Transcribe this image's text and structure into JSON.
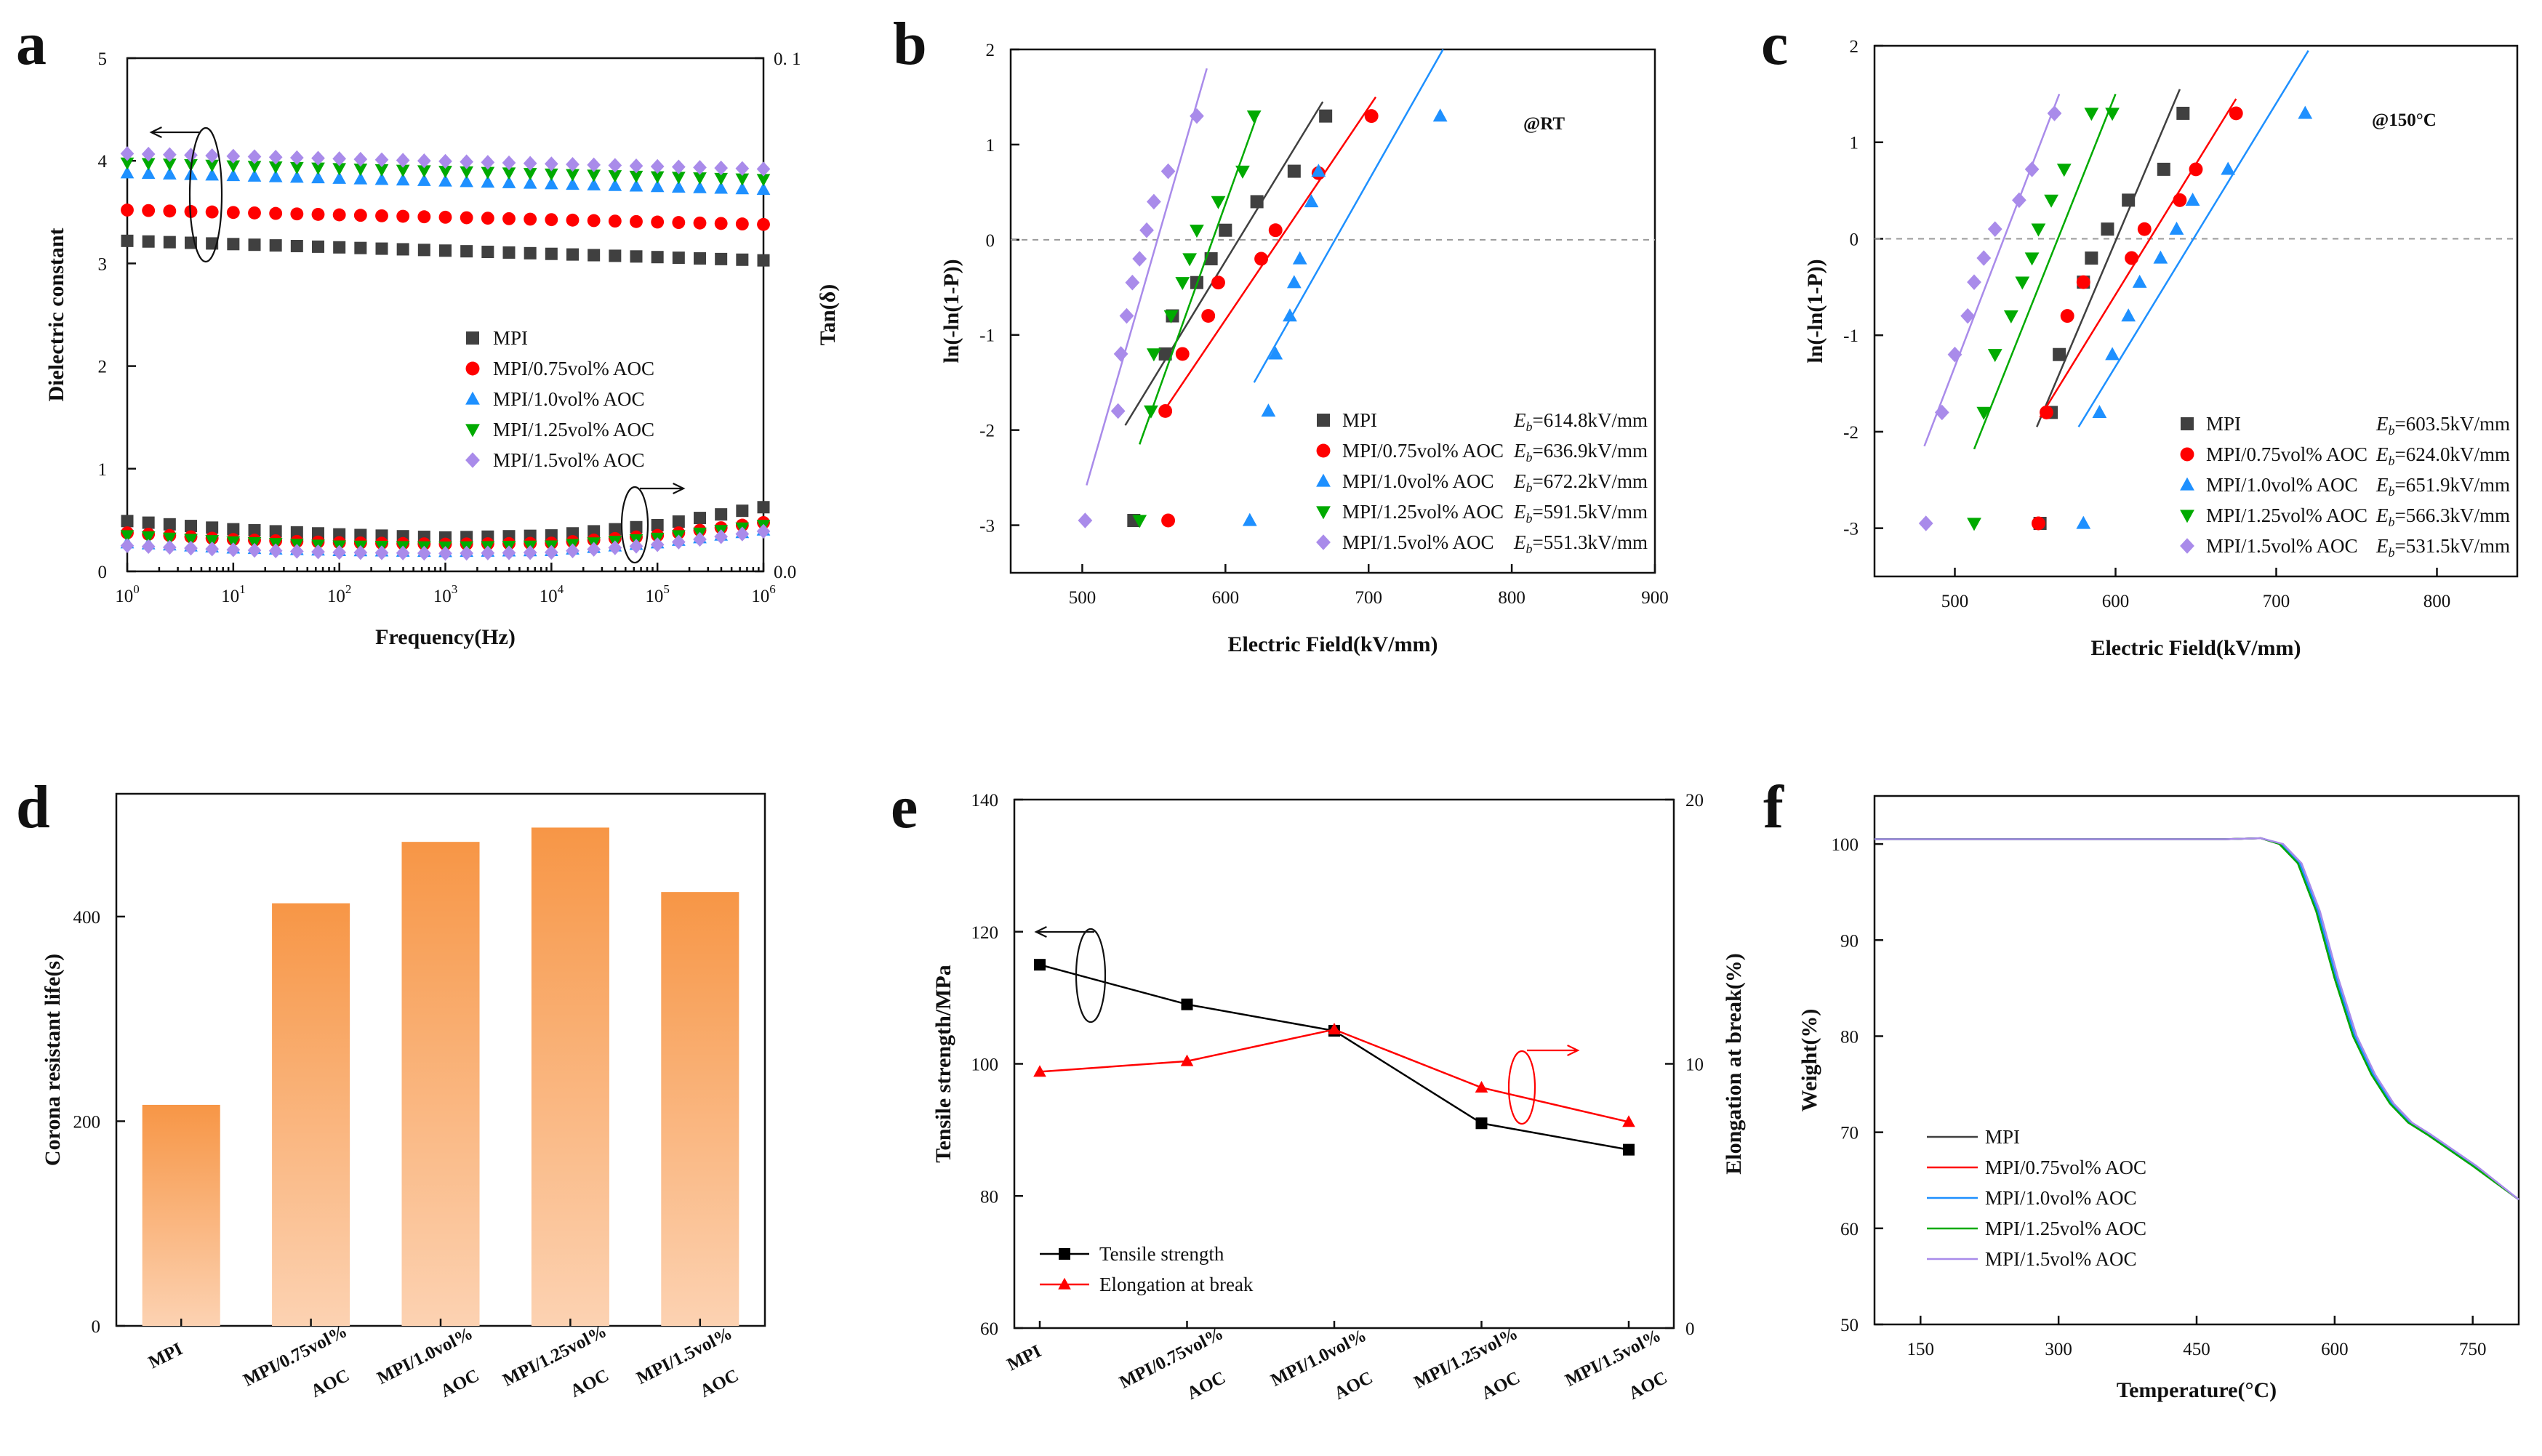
{
  "chart_data": [
    {
      "panel": "a",
      "type": "scatter",
      "xlabel": "Frequency(Hz)",
      "ylabel": "Dielectric constant",
      "y2label": "Tan(δ)",
      "xscale": "log",
      "xlim": [
        1,
        1000000
      ],
      "ylim": [
        0,
        5
      ],
      "y2lim": [
        0.0,
        0.1
      ],
      "xticks": [
        "10^0",
        "10^1",
        "10^2",
        "10^3",
        "10^4",
        "10^5",
        "10^6"
      ],
      "yticks": [
        "0",
        "1",
        "2",
        "3",
        "4",
        "5"
      ],
      "y2ticks": [
        "0.0",
        "0. 1"
      ],
      "legend_position": "center-right",
      "series": [
        {
          "name": "MPI",
          "color": "#404040",
          "marker": "square",
          "eps_start": 3.22,
          "eps_end": 3.03,
          "tan": [
            0.0098,
            0.0082,
            0.0072,
            0.0066,
            0.007,
            0.009,
            0.0125,
            0.0162
          ]
        },
        {
          "name": "MPI/0.75vol% AOC",
          "color": "#ff0000",
          "marker": "circle",
          "eps_start": 3.52,
          "eps_end": 3.38,
          "tan": [
            0.0075,
            0.0062,
            0.0056,
            0.0053,
            0.0055,
            0.007,
            0.0095,
            0.0115
          ]
        },
        {
          "name": "MPI/1.0vol% AOC",
          "color": "#1e90ff",
          "marker": "triangle-up",
          "eps_start": 3.88,
          "eps_end": 3.72,
          "tan": [
            0.0055,
            0.0045,
            0.004,
            0.0038,
            0.004,
            0.0055,
            0.008,
            0.0108
          ]
        },
        {
          "name": "MPI/1.25vol% AOC",
          "color": "#00aa00",
          "marker": "triangle-down",
          "eps_start": 3.98,
          "eps_end": 3.82,
          "tan": [
            0.007,
            0.0058,
            0.005,
            0.0048,
            0.005,
            0.0065,
            0.009,
            0.0112
          ]
        },
        {
          "name": "MPI/1.5vol% AOC",
          "color": "#a98bea",
          "marker": "diamond",
          "eps_start": 4.07,
          "eps_end": 3.92,
          "tan": [
            0.005,
            0.0042,
            0.0037,
            0.0035,
            0.0037,
            0.0052,
            0.0078,
            0.01
          ]
        }
      ]
    },
    {
      "panel": "b",
      "type": "scatter",
      "xlabel": "Electric Field(kV/mm)",
      "ylabel": "ln(-ln(1-P))",
      "annotation": "@RT",
      "xlim": [
        450,
        900
      ],
      "ylim": [
        -3.5,
        2
      ],
      "xticks": [
        "500",
        "600",
        "700",
        "800",
        "900"
      ],
      "yticks": [
        "2",
        "1",
        "0",
        "-1",
        "-2",
        "-3"
      ],
      "legend_position": "lower-right",
      "series": [
        {
          "name": "MPI",
          "eb": "E_b=614.8kV/mm",
          "color": "#404040",
          "marker": "square",
          "x": [
            536,
            558,
            563,
            580,
            590,
            600,
            622,
            648,
            670
          ],
          "y": [
            -2.95,
            -1.2,
            -0.8,
            -0.45,
            -0.2,
            0.1,
            0.4,
            0.72,
            1.3
          ],
          "fit": [
            [
              530,
              -1.95
            ],
            [
              668,
              1.45
            ]
          ]
        },
        {
          "name": "MPI/0.75vol% AOC",
          "eb": "E_b=636.9kV/mm",
          "color": "#ff0000",
          "marker": "circle",
          "x": [
            560,
            558,
            570,
            588,
            595,
            625,
            635,
            665,
            702
          ],
          "y": [
            -2.95,
            -1.8,
            -1.2,
            -0.8,
            -0.45,
            -0.2,
            0.1,
            0.7,
            1.3
          ],
          "fit": [
            [
              557,
              -1.8
            ],
            [
              705,
              1.5
            ]
          ]
        },
        {
          "name": "MPI/1.0vol% AOC",
          "eb": "E_b=672.2kV/mm",
          "color": "#1e90ff",
          "marker": "triangle-up",
          "x": [
            617,
            630,
            635,
            645,
            648,
            652,
            660,
            665,
            750
          ],
          "y": [
            -2.95,
            -1.8,
            -1.2,
            -0.8,
            -0.45,
            -0.2,
            0.4,
            0.72,
            1.3
          ],
          "fit": [
            [
              620,
              -1.5
            ],
            [
              752,
              2.0
            ]
          ]
        },
        {
          "name": "MPI/1.25vol% AOC",
          "eb": "E_b=591.5kV/mm",
          "color": "#00aa00",
          "marker": "triangle-down",
          "x": [
            540,
            548,
            550,
            562,
            570,
            575,
            580,
            595,
            612,
            620
          ],
          "y": [
            -2.95,
            -1.8,
            -1.2,
            -0.8,
            -0.45,
            -0.2,
            0.1,
            0.4,
            0.72,
            1.3
          ],
          "fit": [
            [
              540,
              -2.15
            ],
            [
              622,
              1.3
            ]
          ]
        },
        {
          "name": "MPI/1.5vol% AOC",
          "eb": "E_b=551.3kV/mm",
          "color": "#a98bea",
          "marker": "diamond",
          "x": [
            502,
            525,
            527,
            531,
            535,
            540,
            545,
            550,
            560,
            580
          ],
          "y": [
            -2.95,
            -1.8,
            -1.2,
            -0.8,
            -0.45,
            -0.2,
            0.1,
            0.4,
            0.72,
            1.3
          ],
          "fit": [
            [
              503,
              -2.58
            ],
            [
              587,
              1.8
            ]
          ]
        }
      ]
    },
    {
      "panel": "c",
      "type": "scatter",
      "xlabel": "Electric Field(kV/mm)",
      "ylabel": "ln(-ln(1-P))",
      "annotation": "@150°C",
      "xlim": [
        450,
        850
      ],
      "ylim": [
        -3.5,
        2
      ],
      "xticks": [
        "500",
        "600",
        "700",
        "800"
      ],
      "yticks": [
        "2",
        "1",
        "0",
        "-1",
        "-2",
        "-3"
      ],
      "legend_position": "lower-right",
      "series": [
        {
          "name": "MPI",
          "eb": "E_b=603.5kV/mm",
          "color": "#404040",
          "marker": "square",
          "x": [
            553,
            560,
            565,
            580,
            585,
            595,
            608,
            630,
            642
          ],
          "y": [
            -2.95,
            -1.8,
            -1.2,
            -0.45,
            -0.2,
            0.1,
            0.4,
            0.72,
            1.3
          ],
          "fit": [
            [
              551,
              -1.95
            ],
            [
              640,
              1.55
            ]
          ]
        },
        {
          "name": "MPI/0.75vol% AOC",
          "eb": "E_b=624.0kV/mm",
          "color": "#ff0000",
          "marker": "circle",
          "x": [
            552,
            557,
            570,
            580,
            610,
            618,
            640,
            650,
            675
          ],
          "y": [
            -2.95,
            -1.8,
            -0.8,
            -0.45,
            -0.2,
            0.1,
            0.4,
            0.72,
            1.3
          ],
          "fit": [
            [
              553,
              -1.85
            ],
            [
              675,
              1.45
            ]
          ]
        },
        {
          "name": "MPI/1.0vol% AOC",
          "eb": "E_b=651.9kV/mm",
          "color": "#1e90ff",
          "marker": "triangle-up",
          "x": [
            580,
            590,
            598,
            608,
            615,
            628,
            638,
            648,
            670,
            718
          ],
          "y": [
            -2.95,
            -1.8,
            -1.2,
            -0.8,
            -0.45,
            -0.2,
            0.1,
            0.4,
            0.72,
            1.3
          ],
          "fit": [
            [
              577,
              -1.95
            ],
            [
              720,
              1.95
            ]
          ]
        },
        {
          "name": "MPI/1.25vol% AOC",
          "eb": "E_b=566.3kV/mm",
          "color": "#00aa00",
          "marker": "triangle-down",
          "x": [
            512,
            518,
            525,
            535,
            542,
            548,
            552,
            560,
            568,
            585,
            598
          ],
          "y": [
            -2.95,
            -1.8,
            -1.2,
            -0.8,
            -0.45,
            -0.2,
            0.1,
            0.4,
            0.72,
            1.3,
            1.3
          ],
          "fit": [
            [
              512,
              -2.18
            ],
            [
              600,
              1.5
            ]
          ]
        },
        {
          "name": "MPI/1.5vol% AOC",
          "eb": "E_b=531.5kV/mm",
          "color": "#a98bea",
          "marker": "diamond",
          "x": [
            482,
            492,
            500,
            508,
            512,
            518,
            525,
            540,
            548,
            562
          ],
          "y": [
            -2.95,
            -1.8,
            -1.2,
            -0.8,
            -0.45,
            -0.2,
            0.1,
            0.4,
            0.72,
            1.3
          ],
          "fit": [
            [
              481,
              -2.15
            ],
            [
              565,
              1.5
            ]
          ]
        }
      ]
    },
    {
      "panel": "d",
      "type": "bar",
      "ylabel": "Corona resistant life(s)",
      "ylim": [
        0,
        520
      ],
      "yticks": [
        "0",
        "200",
        "400"
      ],
      "categories": [
        [
          "MPI"
        ],
        [
          "MPI/0.75vol%",
          "AOC"
        ],
        [
          "MPI/1.0vol%",
          "AOC"
        ],
        [
          "MPI/1.25vol%",
          "AOC"
        ],
        [
          "MPI/1.5vol%",
          "AOC"
        ]
      ],
      "values": [
        216,
        413,
        473,
        487,
        424
      ],
      "color": "#f79646"
    },
    {
      "panel": "e",
      "type": "line",
      "ylabel": "Tensile strength/MPa",
      "y2label": "Elongation at break(%)",
      "ylim": [
        60,
        140
      ],
      "y2lim": [
        0,
        20
      ],
      "yticks": [
        "60",
        "80",
        "100",
        "120",
        "140"
      ],
      "y2ticks": [
        "0",
        "10",
        "20"
      ],
      "categories": [
        [
          "MPI"
        ],
        [
          "MPI/0.75vol%",
          "AOC"
        ],
        [
          "MPI/1.0vol%",
          "AOC"
        ],
        [
          "MPI/1.25vol%",
          "AOC"
        ],
        [
          "MPI/1.5vol%",
          "AOC"
        ]
      ],
      "legend_position": "lower-left",
      "series": [
        {
          "name": "Tensile strength",
          "axis": "left",
          "color": "#000000",
          "marker": "square",
          "values": [
            115,
            109,
            105,
            91,
            87
          ]
        },
        {
          "name": "Elongation at break",
          "axis": "right",
          "color": "#ff0000",
          "marker": "triangle-up",
          "values": [
            9.7,
            10.1,
            11.3,
            9.1,
            7.8
          ]
        }
      ]
    },
    {
      "panel": "f",
      "type": "line",
      "xlabel": "Temperature(°C)",
      "ylabel": "Weight(%)",
      "xlim": [
        100,
        800
      ],
      "ylim": [
        50,
        105
      ],
      "xticks": [
        "150",
        "300",
        "450",
        "600",
        "750"
      ],
      "yticks": [
        "50",
        "60",
        "70",
        "80",
        "90",
        "100"
      ],
      "legend_position": "lower-left",
      "series": [
        {
          "name": "MPI",
          "color": "#404040",
          "shift": 0
        },
        {
          "name": "MPI/0.75vol% AOC",
          "color": "#ff0000",
          "shift": 1
        },
        {
          "name": "MPI/1.0vol% AOC",
          "color": "#1e90ff",
          "shift": 2
        },
        {
          "name": "MPI/1.25vol% AOC",
          "color": "#00aa00",
          "shift": 0
        },
        {
          "name": "MPI/1.5vol% AOC",
          "color": "#a98bea",
          "shift": 4
        }
      ],
      "curve": {
        "x": [
          100,
          200,
          300,
          400,
          480,
          520,
          540,
          560,
          580,
          600,
          620,
          640,
          660,
          680,
          700,
          750,
          800
        ],
        "y": [
          100.5,
          100.5,
          100.5,
          100.5,
          100.5,
          100.6,
          100.0,
          98.0,
          93.0,
          86.0,
          80.0,
          76.0,
          73.0,
          71.0,
          69.8,
          66.5,
          63.0
        ]
      }
    }
  ],
  "panel_letters": [
    "a",
    "b",
    "c",
    "d",
    "e",
    "f"
  ]
}
